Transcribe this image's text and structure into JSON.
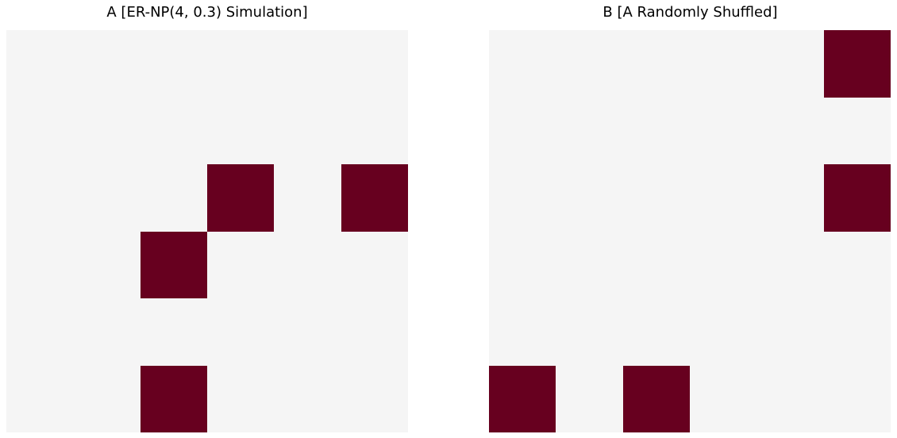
{
  "chart_data": [
    {
      "type": "heatmap",
      "title": "A [ER-NP(4, 0.3) Simulation]",
      "rows": 6,
      "cols": 6,
      "matrix": [
        [
          0,
          0,
          0,
          0,
          0,
          0
        ],
        [
          0,
          0,
          0,
          0,
          0,
          0
        ],
        [
          0,
          0,
          0,
          1,
          0,
          1
        ],
        [
          0,
          0,
          1,
          0,
          0,
          0
        ],
        [
          0,
          0,
          0,
          0,
          0,
          0
        ],
        [
          0,
          0,
          1,
          0,
          0,
          0
        ]
      ],
      "colors": {
        "0": "#f5f5f5",
        "1": "#67001f"
      },
      "axes_visible": false
    },
    {
      "type": "heatmap",
      "title": "B [A Randomly Shuffled]",
      "rows": 6,
      "cols": 6,
      "matrix": [
        [
          0,
          0,
          0,
          0,
          0,
          1
        ],
        [
          0,
          0,
          0,
          0,
          0,
          0
        ],
        [
          0,
          0,
          0,
          0,
          0,
          1
        ],
        [
          0,
          0,
          0,
          0,
          0,
          0
        ],
        [
          0,
          0,
          0,
          0,
          0,
          0
        ],
        [
          1,
          0,
          1,
          0,
          0,
          0
        ]
      ],
      "colors": {
        "0": "#f5f5f5",
        "1": "#67001f"
      },
      "axes_visible": false
    }
  ]
}
